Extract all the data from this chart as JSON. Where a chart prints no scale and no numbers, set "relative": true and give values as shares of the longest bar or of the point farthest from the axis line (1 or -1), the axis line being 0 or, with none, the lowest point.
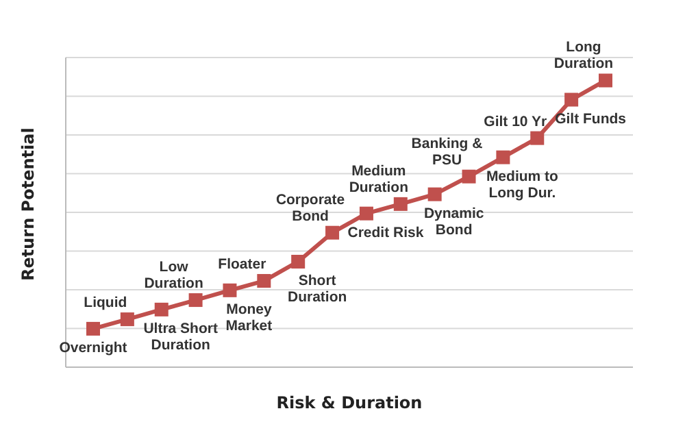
{
  "chart_data": {
    "type": "line",
    "xlabel": "Risk & Duration",
    "ylabel": "Return Potential",
    "relative": true,
    "grid": "y",
    "tick_labels": false,
    "marker": "square",
    "line_style": "solid",
    "legend": false,
    "categories": [
      null,
      null,
      null,
      null,
      null,
      null,
      null,
      null,
      null,
      null,
      null,
      null,
      null,
      null,
      null,
      null
    ],
    "series": [
      {
        "color": "#c0504d",
        "values": [
          0.134,
          0.167,
          0.201,
          0.234,
          0.268,
          0.301,
          0.368,
          0.469,
          0.536,
          0.569,
          0.603,
          0.665,
          0.732,
          0.799,
          0.933,
          1
        ]
      }
    ],
    "annotations": [
      "Overnight",
      "Liquid",
      "Ultra Short Duration",
      "Low Duration",
      "Money Market",
      "Floater",
      "Short Duration",
      "Corporate Bond",
      "Credit Risk",
      "Medium Duration",
      "Dynamic Bond",
      "Banking & PSU",
      "Medium to Long Dur.",
      "Gilt 10 Yr",
      "Gilt Funds",
      "Long Duration"
    ]
  }
}
